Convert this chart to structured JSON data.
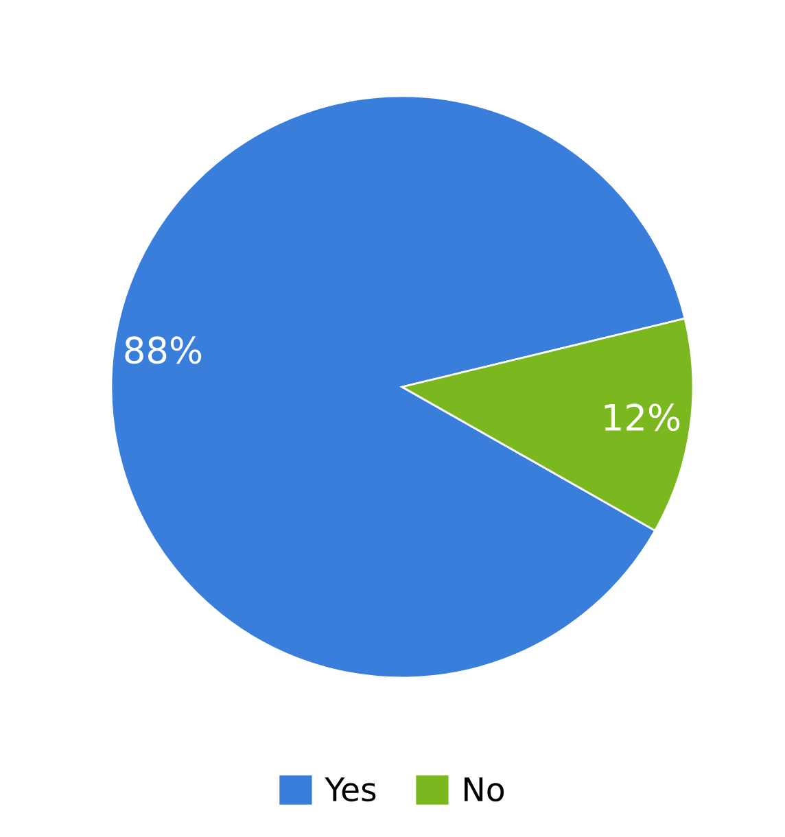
{
  "chart_data": {
    "type": "pie",
    "categories": [
      "Yes",
      "No"
    ],
    "values": [
      88,
      12
    ],
    "colors": [
      "#3a7edb",
      "#7bb81f"
    ],
    "value_labels": [
      "88%",
      "12%"
    ],
    "legend": "bottom"
  }
}
